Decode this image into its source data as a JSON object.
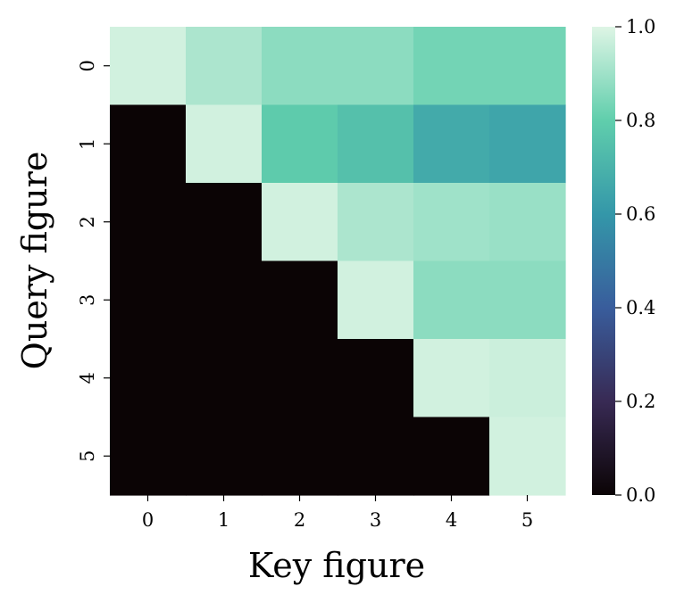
{
  "chart_data": {
    "type": "heatmap",
    "title": "",
    "xlabel": "Key figure",
    "ylabel": "Query figure",
    "x_categories": [
      "0",
      "1",
      "2",
      "3",
      "4",
      "5"
    ],
    "y_categories": [
      "0",
      "1",
      "2",
      "3",
      "4",
      "5"
    ],
    "values": [
      [
        0.98,
        0.92,
        0.87,
        0.87,
        0.83,
        0.83
      ],
      [
        0.0,
        0.98,
        0.79,
        0.75,
        0.67,
        0.65
      ],
      [
        0.0,
        0.0,
        0.98,
        0.92,
        0.9,
        0.89
      ],
      [
        0.0,
        0.0,
        0.0,
        0.98,
        0.87,
        0.87
      ],
      [
        0.0,
        0.0,
        0.0,
        0.0,
        0.98,
        0.97
      ],
      [
        0.0,
        0.0,
        0.0,
        0.0,
        0.0,
        0.98
      ]
    ],
    "colorbar": {
      "range": [
        0.0,
        1.0
      ],
      "ticks": [
        "0.0",
        "0.2",
        "0.4",
        "0.6",
        "0.8",
        "1.0"
      ],
      "colormap": "mako",
      "stops": [
        "#0b0405",
        "#382a54",
        "#395d9c",
        "#3497a9",
        "#60ceac",
        "#def5e5"
      ]
    },
    "grid": false,
    "legend": "colorbar-right"
  }
}
